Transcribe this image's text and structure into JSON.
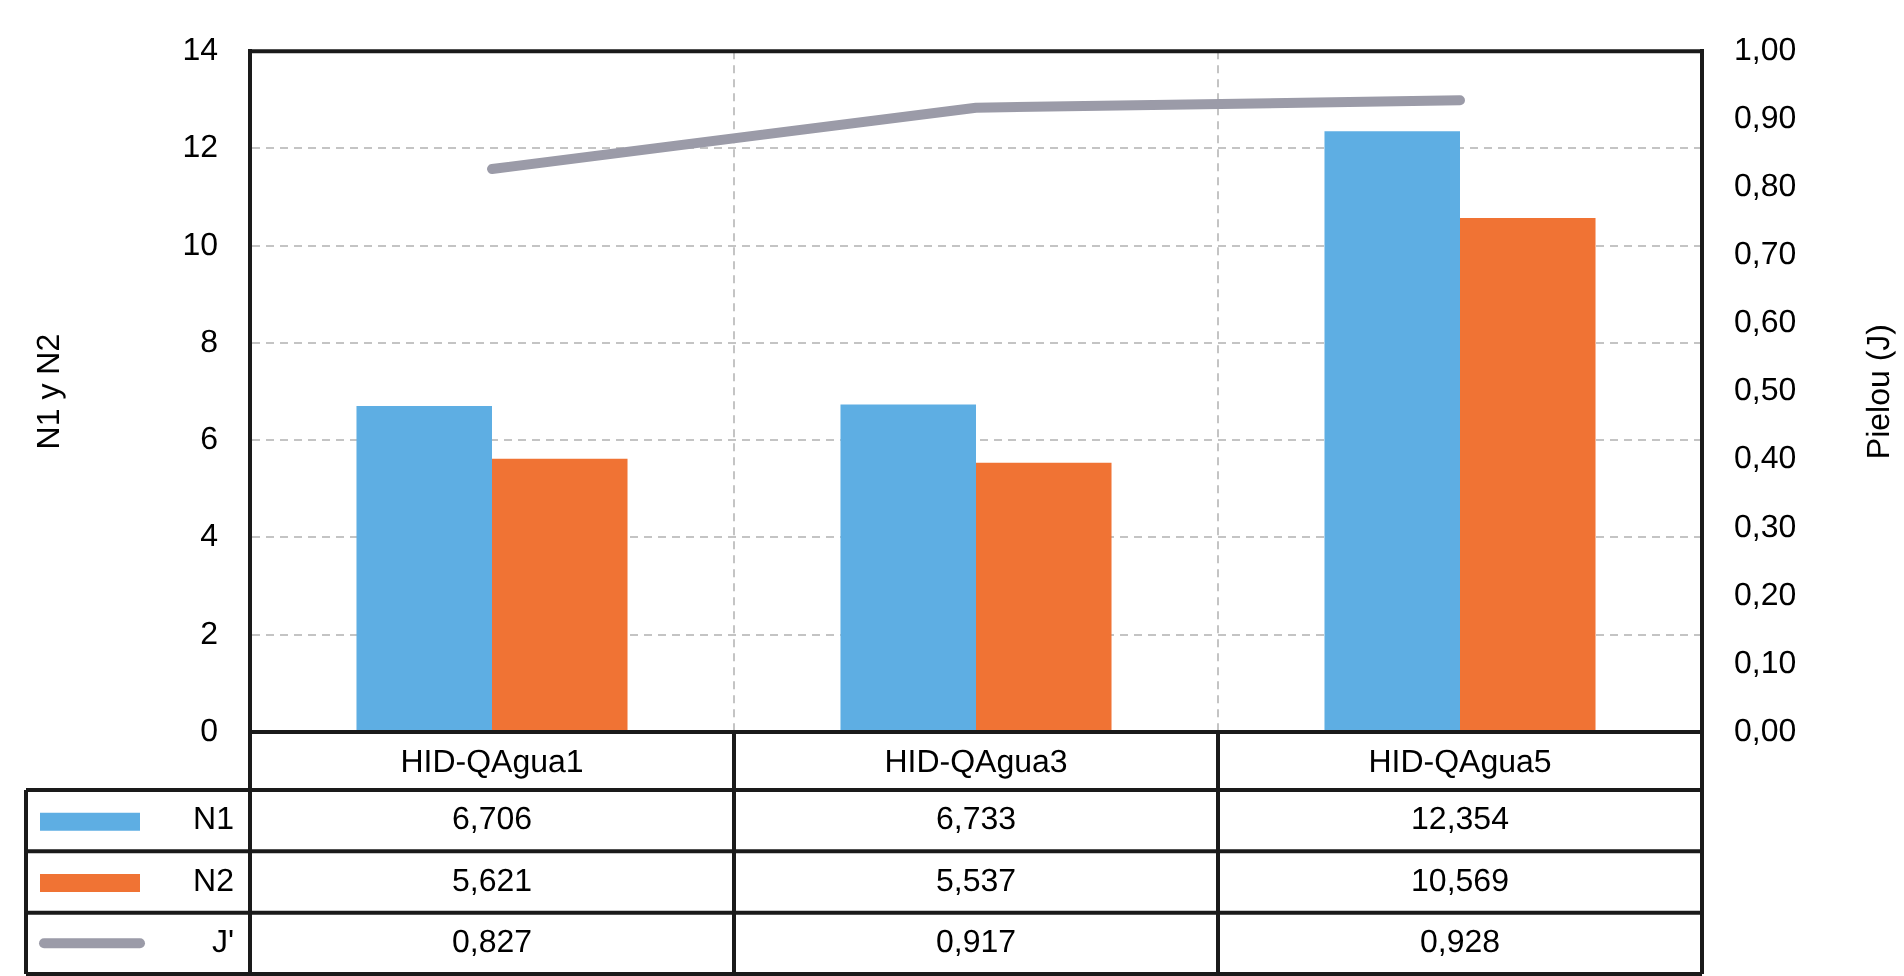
{
  "chart_data": {
    "type": "bar",
    "categories": [
      "HID-QAgua1",
      "HID-QAgua3",
      "HID-QAgua5"
    ],
    "series": [
      {
        "name": "N1",
        "color": "#5eaee3",
        "values": [
          6.706,
          6.733,
          12.354
        ],
        "value_labels": [
          "6,706",
          "6,733",
          "12,354"
        ]
      },
      {
        "name": "N2",
        "color": "#f07334",
        "values": [
          5.621,
          5.537,
          10.569
        ],
        "value_labels": [
          "5,621",
          "5,537",
          "10,569"
        ]
      },
      {
        "name": "J'",
        "type": "line",
        "axis": "y2",
        "color": "#9b9ba8",
        "values": [
          0.827,
          0.917,
          0.928
        ],
        "value_labels": [
          "0,827",
          "0,917",
          "0,928"
        ]
      }
    ],
    "ylabel": "N1 y N2",
    "y2label": "Pielou (J)",
    "ylim": [
      0,
      14
    ],
    "yticks": [
      0,
      2,
      4,
      6,
      8,
      10,
      12,
      14
    ],
    "y2lim": [
      0,
      1
    ],
    "y2ticks": [
      {
        "value": 0,
        "label": "0,00"
      },
      {
        "value": 0.1,
        "label": "0,10"
      },
      {
        "value": 0.2,
        "label": "0,20"
      },
      {
        "value": 0.3,
        "label": "0,30"
      },
      {
        "value": 0.4,
        "label": "0,40"
      },
      {
        "value": 0.5,
        "label": "0,50"
      },
      {
        "value": 0.6,
        "label": "0,60"
      },
      {
        "value": 0.7,
        "label": "0,70"
      },
      {
        "value": 0.8,
        "label": "0,80"
      },
      {
        "value": 0.9,
        "label": "0,90"
      },
      {
        "value": 1,
        "label": "1,00"
      }
    ],
    "grid": true,
    "legend": "bottom left"
  }
}
